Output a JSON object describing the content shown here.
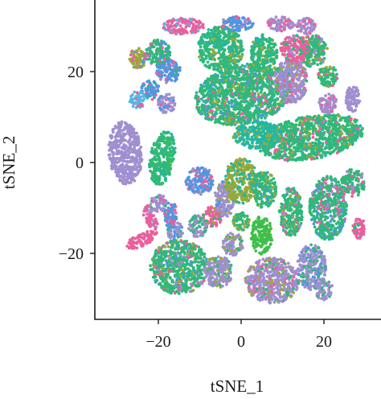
{
  "chart_data": {
    "type": "scatter",
    "title": "",
    "xlabel": "tSNE_1",
    "ylabel": "tSNE_2",
    "xlim": [
      -37,
      33
    ],
    "ylim": [
      -37,
      34
    ],
    "xticks": [
      -20,
      0,
      20
    ],
    "xtick_labels": [
      "−20",
      "0",
      "20"
    ],
    "yticks": [
      -20,
      0,
      20
    ],
    "ytick_labels": [
      "−20",
      "0",
      "20"
    ],
    "grid": false,
    "legend": "none",
    "colors": {
      "green": "#2fb87a",
      "teal": "#22b7a6",
      "olive": "#9aa83a",
      "purple": "#a08fd0",
      "pink": "#e9609b",
      "blue": "#4f97e0",
      "sky": "#55b8e6",
      "lime": "#3fbf4a"
    },
    "clusters": [
      {
        "x": 0.5,
        "y": 15,
        "rx": 12,
        "ry": 6.5,
        "angle": -12,
        "dominant": "green",
        "mix": [
          "teal",
          "olive",
          "pink",
          "blue"
        ]
      },
      {
        "x": 17,
        "y": 5.5,
        "rx": 13,
        "ry": 4.8,
        "angle": -10,
        "dominant": "green",
        "mix": [
          "olive",
          "teal",
          "pink"
        ]
      },
      {
        "x": 4,
        "y": 6,
        "rx": 6,
        "ry": 3,
        "angle": 0,
        "dominant": "teal",
        "mix": [
          "green",
          "olive"
        ]
      },
      {
        "x": 5.5,
        "y": 24,
        "rx": 3.2,
        "ry": 4.2,
        "angle": 0,
        "dominant": "green",
        "mix": [
          "olive",
          "teal"
        ]
      },
      {
        "x": -5,
        "y": 25,
        "rx": 5.5,
        "ry": 5,
        "angle": -10,
        "dominant": "green",
        "mix": [
          "teal",
          "olive"
        ]
      },
      {
        "x": -14,
        "y": 30,
        "rx": 5,
        "ry": 1.8,
        "angle": 0,
        "dominant": "pink",
        "mix": [
          "purple",
          "sky"
        ]
      },
      {
        "x": -1,
        "y": 30.5,
        "rx": 4,
        "ry": 1.6,
        "angle": 0,
        "dominant": "blue",
        "mix": [
          "pink",
          "purple"
        ]
      },
      {
        "x": 9.5,
        "y": 30.5,
        "rx": 3.2,
        "ry": 1.6,
        "angle": 0,
        "dominant": "purple",
        "mix": [
          "pink"
        ]
      },
      {
        "x": 15.5,
        "y": 30,
        "rx": 2.5,
        "ry": 1.8,
        "angle": 0,
        "dominant": "purple",
        "mix": [
          "pink"
        ]
      },
      {
        "x": -25,
        "y": 23,
        "rx": 2.2,
        "ry": 2.2,
        "angle": 0,
        "dominant": "olive",
        "mix": [
          "pink",
          "blue"
        ]
      },
      {
        "x": -20,
        "y": 24,
        "rx": 3,
        "ry": 3,
        "angle": 0,
        "dominant": "green",
        "mix": [
          "blue",
          "pink"
        ]
      },
      {
        "x": -17.5,
        "y": 20,
        "rx": 3,
        "ry": 2.5,
        "angle": 0,
        "dominant": "blue",
        "mix": [
          "purple",
          "pink",
          "green"
        ]
      },
      {
        "x": -22,
        "y": 16,
        "rx": 2.2,
        "ry": 2.2,
        "angle": 0,
        "dominant": "blue",
        "mix": [
          "pink",
          "teal"
        ]
      },
      {
        "x": -18,
        "y": 13,
        "rx": 2.2,
        "ry": 2.2,
        "angle": 0,
        "dominant": "purple",
        "mix": [
          "blue",
          "pink"
        ]
      },
      {
        "x": -25,
        "y": 14,
        "rx": 2,
        "ry": 2,
        "angle": 0,
        "dominant": "sky",
        "mix": [
          "pink"
        ]
      },
      {
        "x": -28,
        "y": 2,
        "rx": 4,
        "ry": 7,
        "angle": -5,
        "dominant": "purple",
        "mix": [
          "purple"
        ]
      },
      {
        "x": -19,
        "y": 1,
        "rx": 3,
        "ry": 6,
        "angle": 10,
        "dominant": "green",
        "mix": [
          "lime",
          "teal"
        ]
      },
      {
        "x": 12,
        "y": 18,
        "rx": 4,
        "ry": 5,
        "angle": 0,
        "dominant": "purple",
        "mix": [
          "green",
          "pink",
          "olive"
        ]
      },
      {
        "x": 17.5,
        "y": 24.5,
        "rx": 3.5,
        "ry": 3.5,
        "angle": 0,
        "dominant": "green",
        "mix": [
          "pink",
          "purple",
          "olive"
        ]
      },
      {
        "x": 13,
        "y": 25,
        "rx": 3.5,
        "ry": 3,
        "angle": 0,
        "dominant": "pink",
        "mix": [
          "green",
          "purple"
        ]
      },
      {
        "x": 21,
        "y": 19,
        "rx": 2.4,
        "ry": 2.4,
        "angle": 0,
        "dominant": "green",
        "mix": [
          "pink",
          "olive"
        ]
      },
      {
        "x": 21,
        "y": 13,
        "rx": 2.2,
        "ry": 2.2,
        "angle": 0,
        "dominant": "purple",
        "mix": [
          "pink"
        ]
      },
      {
        "x": 27,
        "y": 14,
        "rx": 1.8,
        "ry": 2.8,
        "angle": 0,
        "dominant": "purple",
        "mix": [
          "purple"
        ]
      },
      {
        "x": -10,
        "y": -4,
        "rx": 3.5,
        "ry": 3,
        "angle": 0,
        "dominant": "blue",
        "mix": [
          "pink",
          "purple"
        ]
      },
      {
        "x": -7,
        "y": -12,
        "rx": 2.3,
        "ry": 2.3,
        "angle": 0,
        "dominant": "pink",
        "mix": [
          "green",
          "olive"
        ]
      },
      {
        "x": -4,
        "y": -8,
        "rx": 2.5,
        "ry": 4,
        "angle": 0,
        "dominant": "purple",
        "mix": [
          "olive",
          "blue"
        ]
      },
      {
        "x": 0,
        "y": -4,
        "rx": 4,
        "ry": 5,
        "angle": 0,
        "dominant": "olive",
        "mix": [
          "green",
          "teal"
        ]
      },
      {
        "x": 5.5,
        "y": -6,
        "rx": 3,
        "ry": 4,
        "angle": 0,
        "dominant": "green",
        "mix": [
          "blue",
          "olive"
        ]
      },
      {
        "x": 12,
        "y": -11,
        "rx": 2.8,
        "ry": 5.5,
        "angle": 0,
        "dominant": "green",
        "mix": [
          "purple",
          "olive",
          "pink"
        ]
      },
      {
        "x": 21,
        "y": -10,
        "rx": 4.5,
        "ry": 7,
        "angle": 0,
        "dominant": "green",
        "mix": [
          "blue",
          "purple",
          "pink"
        ]
      },
      {
        "x": 27,
        "y": -4.5,
        "rx": 3,
        "ry": 3,
        "angle": 0,
        "dominant": "green",
        "mix": [
          "purple",
          "pink"
        ]
      },
      {
        "x": 28.5,
        "y": -14.5,
        "rx": 1.6,
        "ry": 2.2,
        "angle": 0,
        "dominant": "pink",
        "mix": [
          "green"
        ]
      },
      {
        "x": 5,
        "y": -16,
        "rx": 2.6,
        "ry": 4.2,
        "angle": 0,
        "dominant": "lime",
        "mix": [
          "lime"
        ]
      },
      {
        "x": 0,
        "y": -13,
        "rx": 2,
        "ry": 2,
        "angle": 0,
        "dominant": "green",
        "mix": [
          "olive"
        ]
      },
      {
        "x": -2,
        "y": -18,
        "rx": 2.5,
        "ry": 2.5,
        "angle": 0,
        "dominant": "purple",
        "mix": [
          "green",
          "olive"
        ]
      },
      {
        "x": -15,
        "y": -23,
        "rx": 7,
        "ry": 6,
        "angle": 0,
        "dominant": "green",
        "mix": [
          "purple",
          "olive",
          "blue",
          "pink"
        ]
      },
      {
        "x": -5.5,
        "y": -24,
        "rx": 3.5,
        "ry": 3.5,
        "angle": 0,
        "dominant": "purple",
        "mix": [
          "green",
          "olive"
        ]
      },
      {
        "x": 7.5,
        "y": -26,
        "rx": 6.5,
        "ry": 5,
        "angle": 0,
        "dominant": "purple",
        "mix": [
          "green",
          "olive",
          "pink"
        ]
      },
      {
        "x": 17,
        "y": -23,
        "rx": 3.5,
        "ry": 5,
        "angle": 0,
        "dominant": "purple",
        "mix": [
          "green",
          "blue"
        ]
      },
      {
        "x": 20,
        "y": -28,
        "rx": 2.2,
        "ry": 2.2,
        "angle": 0,
        "dominant": "purple",
        "mix": [
          "green"
        ]
      },
      {
        "x": -20,
        "y": -9,
        "rx": 2,
        "ry": 2,
        "angle": 0,
        "dominant": "purple",
        "mix": [
          "pink",
          "green"
        ]
      },
      {
        "x": -16,
        "y": -15,
        "rx": 2,
        "ry": 2,
        "angle": 0,
        "dominant": "purple",
        "mix": [
          "blue",
          "green"
        ]
      },
      {
        "x": -10.5,
        "y": -14,
        "rx": 2.4,
        "ry": 2.4,
        "angle": 0,
        "dominant": "purple",
        "mix": [
          "green"
        ]
      },
      {
        "x": -24,
        "y": -17,
        "rx": 4,
        "ry": 1.4,
        "angle": -25,
        "dominant": "pink",
        "mix": [
          "pink"
        ]
      },
      {
        "x": -22,
        "y": -12,
        "rx": 1.3,
        "ry": 3,
        "angle": -25,
        "dominant": "pink",
        "mix": [
          "purple"
        ]
      },
      {
        "x": -17,
        "y": -11.5,
        "rx": 1.5,
        "ry": 3,
        "angle": 0,
        "dominant": "blue",
        "mix": [
          "pink"
        ]
      }
    ]
  }
}
